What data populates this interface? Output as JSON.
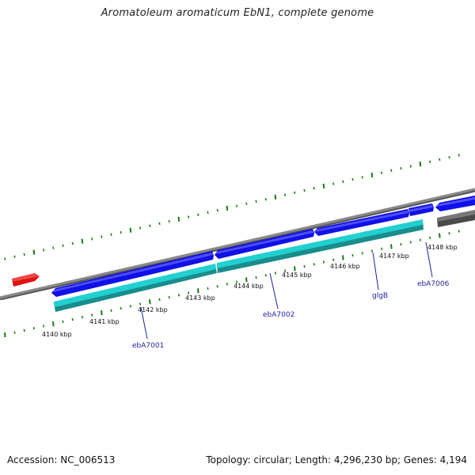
{
  "title": "Aromatoleum aromaticum EbN1, complete genome",
  "accession": "Accession: NC_006513",
  "summary": "Topology: circular; Length: 4,296,230 bp; Genes: 4,194",
  "scale_labels": [
    "4140 kbp",
    "4141 kbp",
    "4142 kbp",
    "4143 kbp",
    "4144 kbp",
    "4145 kbp",
    "4146 kbp",
    "4147 kbp",
    "4148 kbp"
  ],
  "gene_labels": [
    "ebA7001",
    "ebA7002",
    "glgB",
    "ebA7006"
  ],
  "colors": {
    "cds_forward": "#1010e8",
    "gene_cyan": "#20c8c8",
    "backbone": "#808080",
    "tick": "#1a7a1a",
    "label": "#1f1f9f",
    "marker_red": "#e01010",
    "gray_feature": "#6a6a6a"
  }
}
